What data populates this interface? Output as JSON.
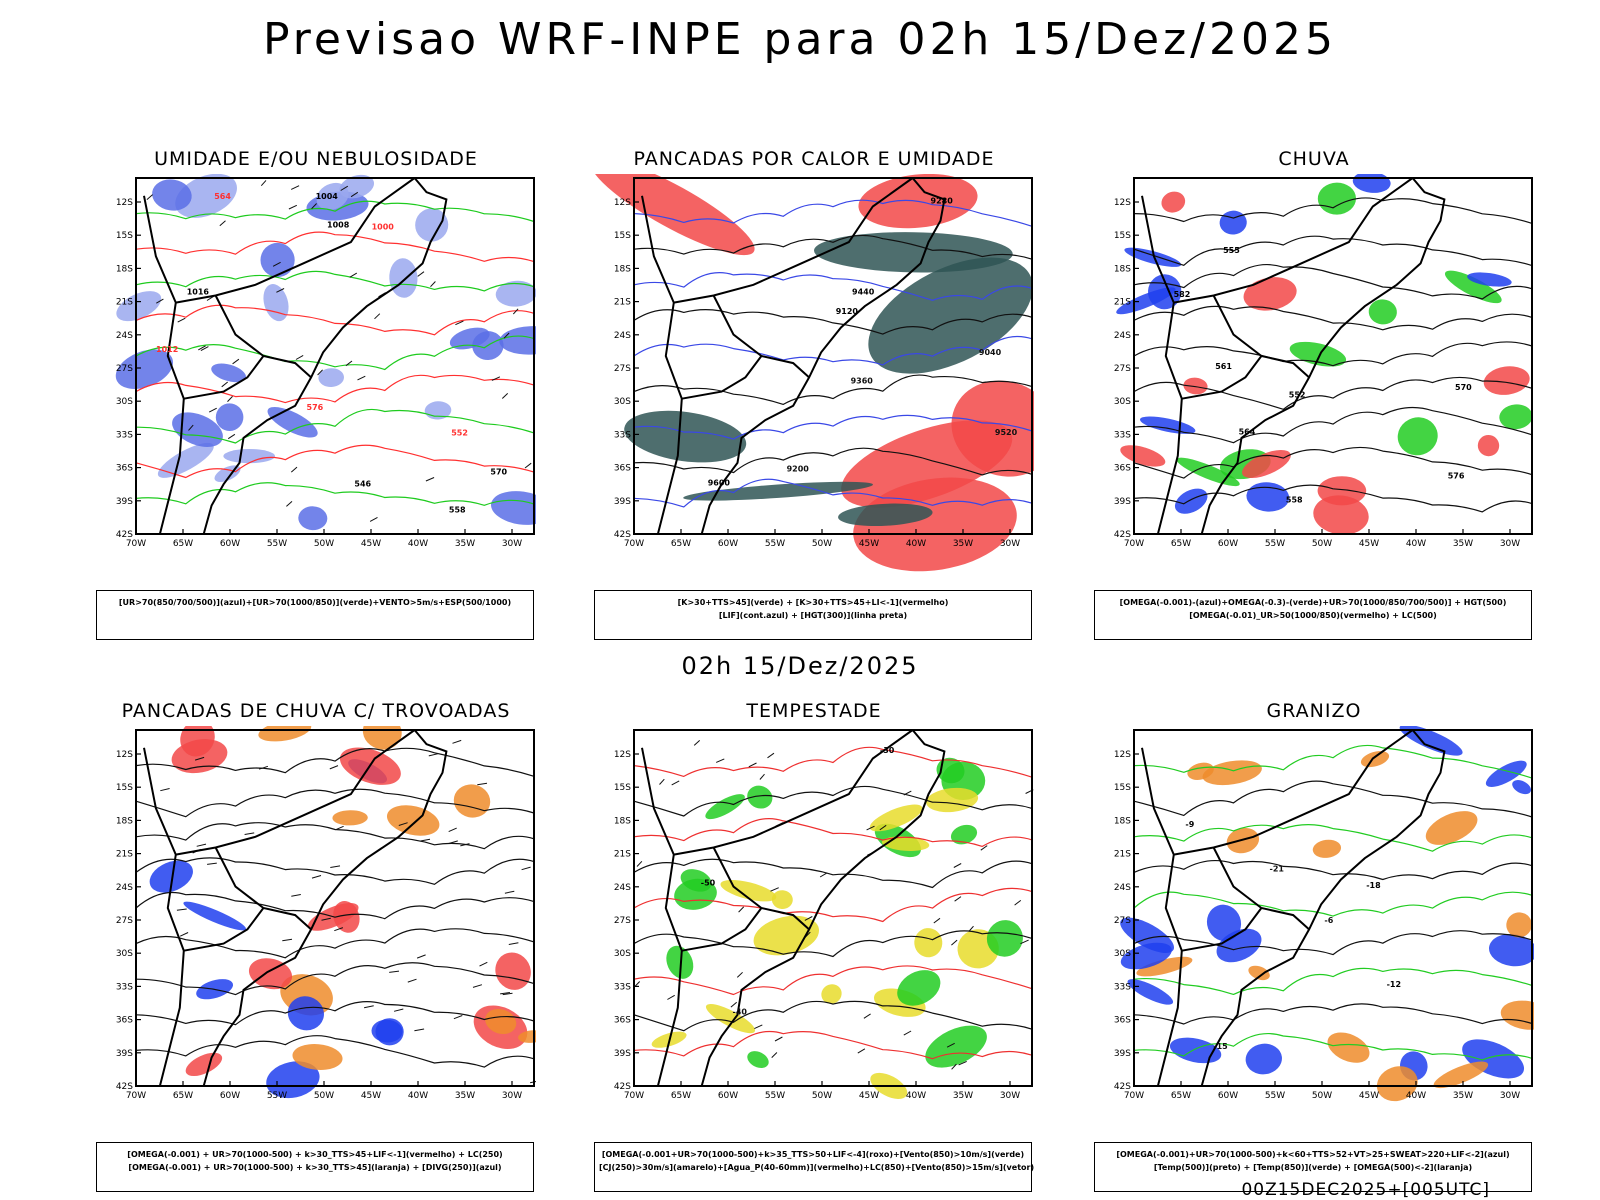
{
  "title": "Previsao WRF-INPE  para 02h 15/Dez/2025",
  "subtitle": "02h 15/Dez/2025",
  "footer": "00Z15DEC2025+[005UTC]",
  "axes": {
    "lat_labels": [
      "12S",
      "15S",
      "18S",
      "21S",
      "24S",
      "27S",
      "30S",
      "33S",
      "36S",
      "39S",
      "42S"
    ],
    "lon_labels": [
      "70W",
      "65W",
      "60W",
      "55W",
      "50W",
      "45W",
      "40W",
      "35W",
      "30W"
    ]
  },
  "panels": [
    {
      "title": "UMIDADE E/OU NEBULOSIDADE",
      "legend": [
        "[UR>70(850/700/500)](azul)+[UR>70(1000/850)](verde)+VENTO>5m/s+ESP(500/1000)"
      ],
      "contour_labels": [
        "1008",
        "1012",
        "1004",
        "1000",
        "1016",
        "576",
        "570",
        "564",
        "558",
        "552",
        "546"
      ],
      "colors": {
        "fill1": "#9aa8ee",
        "fill2": "#5a6fe6",
        "line1": "#1ecb1e",
        "line2": "#ff3030"
      }
    },
    {
      "title": "PANCADAS POR CALOR E UMIDADE",
      "legend": [
        "[K>30+TTS>45](verde) + [K>30+TTS>45+LI<-1](vermelho)",
        "[LIF](cont.azul) + [HGT(300)](linha preta)"
      ],
      "contour_labels": [
        "9600",
        "9520",
        "9440",
        "9360",
        "9280",
        "9200",
        "9120",
        "9040"
      ],
      "colors": {
        "fill1": "#f24848",
        "fill2": "#2f5555",
        "line1": "#3a48e6",
        "line2": "#111111"
      }
    },
    {
      "title": "CHUVA",
      "legend": [
        "[OMEGA(-0.001)-(azul)+OMEGA(-0.3)-(verde)+UR>70(1000/850/700/500)] + HGT(500)",
        "[OMEGA(-0.01)_UR>50(1000/850)(vermelho) + LC(500)"
      ],
      "contour_labels": [
        "582",
        "576",
        "570",
        "564",
        "561",
        "558",
        "555",
        "552"
      ],
      "colors": {
        "fill1": "#f24848",
        "fill2": "#2040ee",
        "fill3": "#22cc22",
        "line1": "#111111"
      }
    },
    {
      "title": "PANCADAS DE CHUVA C/ TROVOADAS",
      "legend": [
        "[OMEGA(-0.001) + UR>70(1000-500) + k>30_TTS>45+LIF<-1](vermelho) + LC(250)",
        "[OMEGA(-0.001) + UR>70(1000-500) + k>30_TTS>45](laranja) + [DIVG(250)](azul)"
      ],
      "contour_labels": [],
      "colors": {
        "fill1": "#f24848",
        "fill2": "#ee8c2c",
        "fill3": "#2040ee",
        "line1": "#111111"
      }
    },
    {
      "title": "TEMPESTADE",
      "legend": [
        "[OMEGA(-0.001+UR>70(1000-500)+k>35_TTS>50+LIF<-4](roxo)+[Vento(850)>10m/s](verde)",
        "[CJ(250)>30m/s](amarelo)+[Agua_P(40-60mm)](vermelho)+LC(850)+[Vento(850)>15m/s](vetor)"
      ],
      "contour_labels": [
        "-50",
        "-40",
        "-30"
      ],
      "colors": {
        "fill1": "#e8dc2c",
        "fill2": "#22cc22",
        "line1": "#ee3030",
        "line2": "#111111"
      }
    },
    {
      "title": "GRANIZO",
      "legend": [
        "[OMEGA(-0.001)+UR>70(1000-500)+k<60+TTS>52+VT>25+SWEAT>220+LIF<-2](azul)",
        "[Temp(500)](preto) + [Temp(850)](verde) + [OMEGA(500)<-2](laranja)"
      ],
      "contour_labels": [
        "-12",
        "-15",
        "-18",
        "-21",
        "-9",
        "-6"
      ],
      "colors": {
        "fill1": "#ee8c2c",
        "fill2": "#2040ee",
        "line1": "#22cc22",
        "line2": "#111111"
      }
    }
  ]
}
